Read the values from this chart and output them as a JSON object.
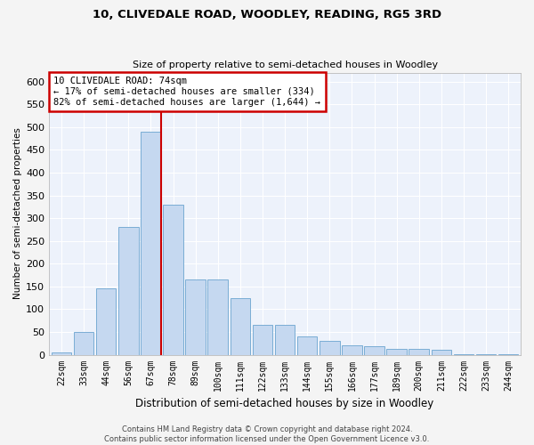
{
  "title": "10, CLIVEDALE ROAD, WOODLEY, READING, RG5 3RD",
  "subtitle": "Size of property relative to semi-detached houses in Woodley",
  "xlabel": "Distribution of semi-detached houses by size in Woodley",
  "ylabel": "Number of semi-detached properties",
  "categories": [
    "22sqm",
    "33sqm",
    "44sqm",
    "56sqm",
    "67sqm",
    "78sqm",
    "89sqm",
    "100sqm",
    "111sqm",
    "122sqm",
    "133sqm",
    "144sqm",
    "155sqm",
    "166sqm",
    "177sqm",
    "189sqm",
    "200sqm",
    "211sqm",
    "222sqm",
    "233sqm",
    "244sqm"
  ],
  "values": [
    5,
    50,
    145,
    280,
    490,
    330,
    165,
    165,
    125,
    65,
    65,
    40,
    30,
    20,
    18,
    12,
    12,
    10,
    2,
    2,
    2
  ],
  "bar_color": "#c5d8f0",
  "bar_edge_color": "#7aadd4",
  "vline_index": 4,
  "annotation_title": "10 CLIVEDALE ROAD: 74sqm",
  "annotation_line1": "← 17% of semi-detached houses are smaller (334)",
  "annotation_line2": "82% of semi-detached houses are larger (1,644) →",
  "annotation_box_color": "#ffffff",
  "annotation_box_edge": "#cc0000",
  "vline_color": "#cc0000",
  "ylim": [
    0,
    620
  ],
  "yticks": [
    0,
    50,
    100,
    150,
    200,
    250,
    300,
    350,
    400,
    450,
    500,
    550,
    600
  ],
  "footer1": "Contains HM Land Registry data © Crown copyright and database right 2024.",
  "footer2": "Contains public sector information licensed under the Open Government Licence v3.0.",
  "bg_color": "#edf2fb",
  "grid_color": "#ffffff",
  "fig_bg": "#f4f4f4"
}
